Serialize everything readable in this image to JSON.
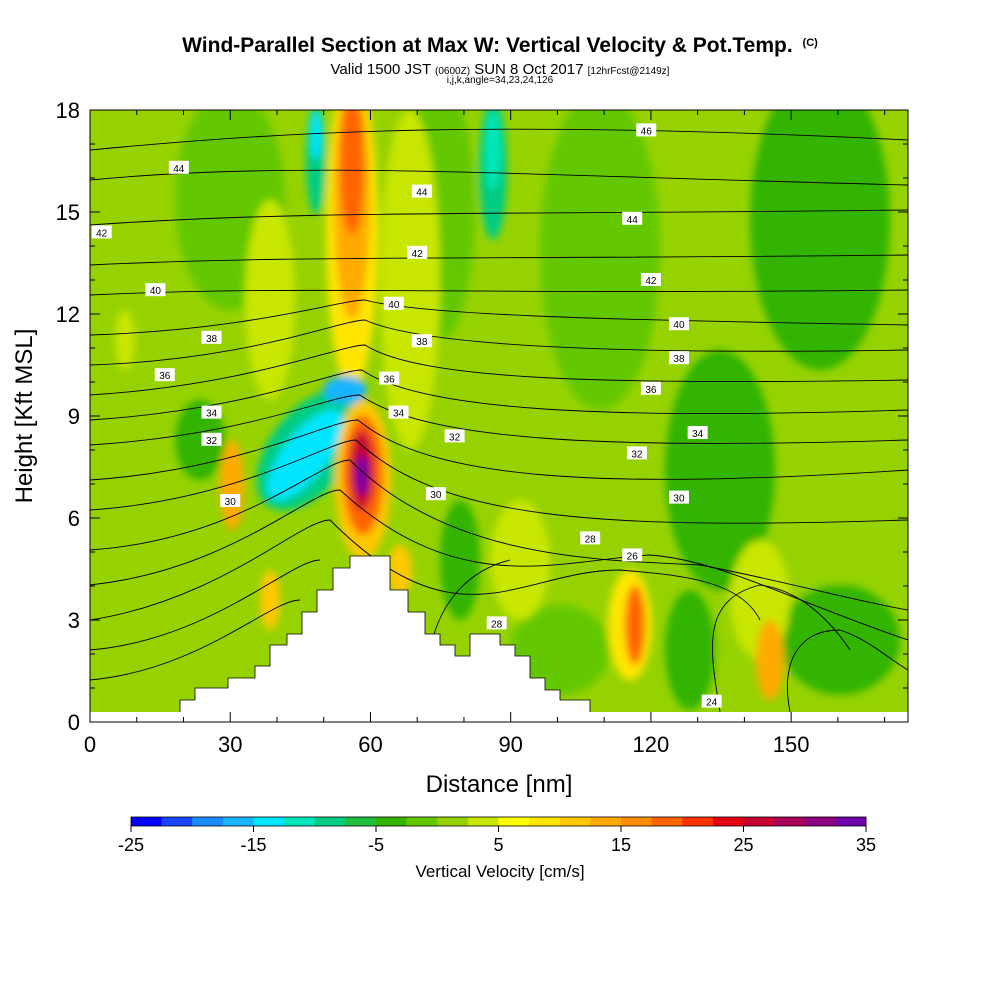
{
  "header": {
    "title": "Wind-Parallel Section at Max W: Vertical Velocity & Pot.Temp.",
    "copyright": "(C)",
    "valid_prefix": "Valid 1500 JST",
    "valid_utc": "(0600Z)",
    "valid_date": "SUN 8 Oct 2017",
    "forecast_note": "[12hrFcst@2149z]",
    "params": "i,j,k,angle=34,23,24,126"
  },
  "chart_data": {
    "type": "heatmap",
    "title": "Wind-Parallel Section at Max W: Vertical Velocity & Pot.Temp.",
    "xlabel": "Distance [nm]",
    "ylabel": "Height [Kft MSL]",
    "xlim": [
      0,
      175
    ],
    "ylim": [
      0,
      18
    ],
    "xticks": [
      0,
      30,
      60,
      90,
      120,
      150
    ],
    "yticks": [
      0,
      3,
      6,
      9,
      12,
      15,
      18
    ],
    "colorbar": {
      "label": "Vertical Velocity [cm/s]",
      "min": -25,
      "max": 35,
      "ticks": [
        -25,
        -15,
        -5,
        5,
        15,
        25,
        35
      ],
      "colors": [
        "#0000ff",
        "#1a46ff",
        "#1a8cff",
        "#19b4ff",
        "#00e6ff",
        "#00e6b9",
        "#00cc82",
        "#1ebe3c",
        "#32b400",
        "#64c800",
        "#96d200",
        "#c8e600",
        "#ffff00",
        "#ffe600",
        "#ffc800",
        "#ffaa00",
        "#ff8c00",
        "#ff6400",
        "#ff3200",
        "#e60014",
        "#c80032",
        "#aa005a",
        "#8c0082",
        "#6e00aa"
      ]
    },
    "contour_labels": [
      {
        "x": 2.5,
        "y": 14.4,
        "text": "42"
      },
      {
        "x": 19,
        "y": 16.3,
        "text": "44"
      },
      {
        "x": 14,
        "y": 12.7,
        "text": "40"
      },
      {
        "x": 26,
        "y": 11.3,
        "text": "38"
      },
      {
        "x": 16,
        "y": 10.2,
        "text": "36"
      },
      {
        "x": 26,
        "y": 9.1,
        "text": "34"
      },
      {
        "x": 26,
        "y": 8.3,
        "text": "32"
      },
      {
        "x": 30,
        "y": 6.5,
        "text": "30"
      },
      {
        "x": 71,
        "y": 15.6,
        "text": "44"
      },
      {
        "x": 70,
        "y": 13.8,
        "text": "42"
      },
      {
        "x": 65,
        "y": 12.3,
        "text": "40"
      },
      {
        "x": 71,
        "y": 11.2,
        "text": "38"
      },
      {
        "x": 64,
        "y": 10.1,
        "text": "36"
      },
      {
        "x": 66,
        "y": 9.1,
        "text": "34"
      },
      {
        "x": 78,
        "y": 8.4,
        "text": "32"
      },
      {
        "x": 74,
        "y": 6.7,
        "text": "30"
      },
      {
        "x": 107,
        "y": 5.4,
        "text": "28"
      },
      {
        "x": 87,
        "y": 2.9,
        "text": "28"
      },
      {
        "x": 116,
        "y": 4.9,
        "text": "26"
      },
      {
        "x": 119,
        "y": 17.4,
        "text": "46"
      },
      {
        "x": 116,
        "y": 14.8,
        "text": "44"
      },
      {
        "x": 120,
        "y": 13.0,
        "text": "42"
      },
      {
        "x": 126,
        "y": 11.7,
        "text": "40"
      },
      {
        "x": 126,
        "y": 10.7,
        "text": "38"
      },
      {
        "x": 120,
        "y": 9.8,
        "text": "36"
      },
      {
        "x": 130,
        "y": 8.5,
        "text": "34"
      },
      {
        "x": 117,
        "y": 7.9,
        "text": "32"
      },
      {
        "x": 126,
        "y": 6.6,
        "text": "30"
      },
      {
        "x": 133,
        "y": 0.6,
        "text": "24"
      }
    ]
  }
}
